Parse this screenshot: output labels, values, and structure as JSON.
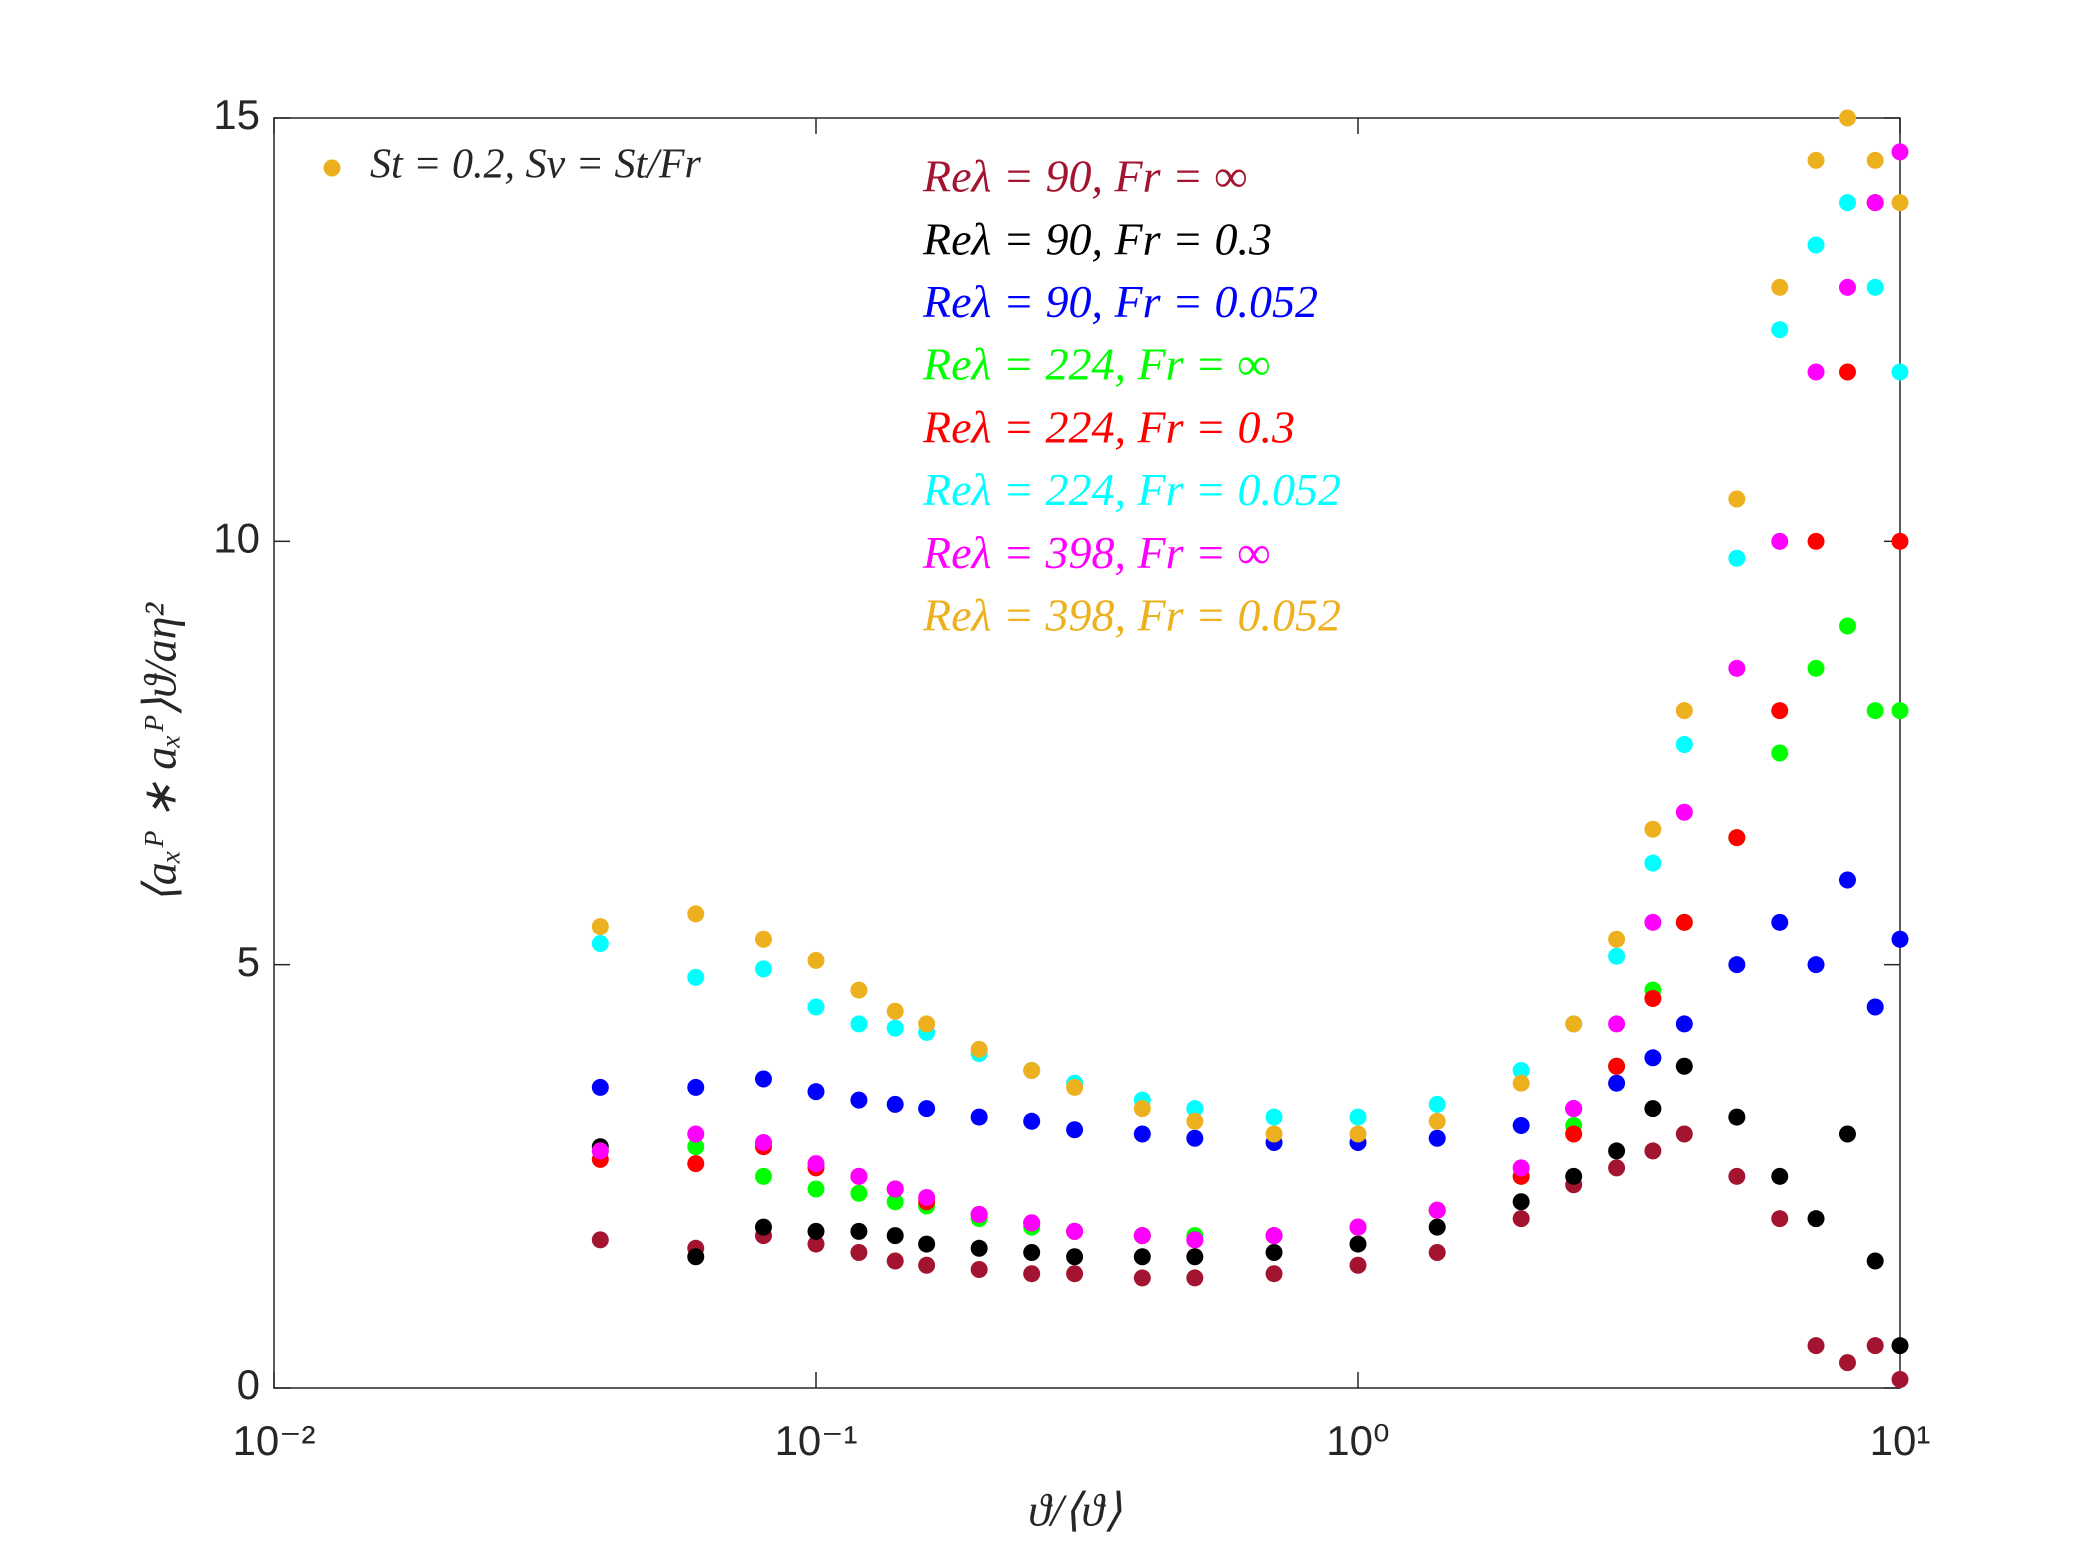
{
  "chart_data": {
    "type": "scatter",
    "xlabel": "ϑ/⟨ϑ⟩",
    "ylabel": "⟨aₓᴾ ∗ aₓᴾ⟩ϑ/aη²",
    "legend": {
      "label": "St = 0.2, Sv = St/Fr",
      "color": "#EDB120"
    },
    "log_x": true,
    "xlim": [
      0.01,
      10
    ],
    "ylim": [
      0,
      15
    ],
    "xticks": [
      {
        "value": 0.01,
        "label": "10⁻²"
      },
      {
        "value": 0.1,
        "label": "10⁻¹"
      },
      {
        "value": 1,
        "label": "10⁰"
      },
      {
        "value": 10,
        "label": "10¹"
      }
    ],
    "yticks": [
      0,
      5,
      10,
      15
    ],
    "x": [
      0.04,
      0.06,
      0.08,
      0.1,
      0.12,
      0.14,
      0.16,
      0.2,
      0.25,
      0.3,
      0.4,
      0.5,
      0.7,
      1,
      1.4,
      2,
      2.5,
      3,
      3.5,
      4,
      5,
      6,
      7,
      8,
      9,
      10
    ],
    "series": [
      {
        "name": "Reλ = 90, Fr = ∞",
        "color": "#A2142F",
        "values": [
          1.75,
          1.65,
          1.8,
          1.7,
          1.6,
          1.5,
          1.45,
          1.4,
          1.35,
          1.35,
          1.3,
          1.3,
          1.35,
          1.45,
          1.6,
          2.0,
          2.4,
          2.6,
          2.8,
          3.0,
          2.5,
          2.0,
          0.5,
          0.3,
          0.5,
          0.1
        ]
      },
      {
        "name": "Reλ = 90, Fr = 0.3",
        "color": "#000000",
        "values": [
          2.85,
          1.55,
          1.9,
          1.85,
          1.85,
          1.8,
          1.7,
          1.65,
          1.6,
          1.55,
          1.55,
          1.55,
          1.6,
          1.7,
          1.9,
          2.2,
          2.5,
          2.8,
          3.3,
          3.8,
          3.2,
          2.5,
          2.0,
          3.0,
          1.5,
          0.5
        ]
      },
      {
        "name": "Reλ = 90, Fr = 0.052",
        "color": "#0000FF",
        "values": [
          3.55,
          3.55,
          3.65,
          3.5,
          3.4,
          3.35,
          3.3,
          3.2,
          3.15,
          3.05,
          3.0,
          2.95,
          2.9,
          2.9,
          2.95,
          3.1,
          3.3,
          3.6,
          3.9,
          4.3,
          5.0,
          5.5,
          5.0,
          6.0,
          4.5,
          5.3
        ]
      },
      {
        "name": "Reλ = 224, Fr = ∞",
        "color": "#00FF00",
        "values": [
          2.8,
          2.85,
          2.5,
          2.35,
          2.3,
          2.2,
          2.15,
          2.0,
          1.9,
          1.85,
          1.8,
          1.8,
          1.8,
          1.9,
          2.1,
          2.5,
          3.1,
          3.8,
          4.7,
          5.5,
          6.5,
          7.5,
          8.5,
          9,
          8,
          8
        ]
      },
      {
        "name": "Reλ = 224, Fr = 0.3",
        "color": "#FF0000",
        "values": [
          2.7,
          2.65,
          2.85,
          2.6,
          2.5,
          2.35,
          2.2,
          2.05,
          1.95,
          1.85,
          1.8,
          1.75,
          1.8,
          1.9,
          2.1,
          2.5,
          3.0,
          3.8,
          4.6,
          5.5,
          6.5,
          8,
          10,
          12,
          14,
          10
        ]
      },
      {
        "name": "Reλ = 224, Fr = 0.052",
        "color": "#00FFFF",
        "values": [
          5.25,
          4.85,
          4.95,
          4.5,
          4.3,
          4.25,
          4.2,
          3.95,
          3.75,
          3.6,
          3.4,
          3.3,
          3.2,
          3.2,
          3.35,
          3.75,
          4.3,
          5.1,
          6.2,
          7.6,
          9.8,
          12.5,
          13.5,
          14,
          13,
          12
        ]
      },
      {
        "name": "Reλ = 398, Fr = ∞",
        "color": "#FF00FF",
        "values": [
          2.8,
          3.0,
          2.9,
          2.65,
          2.5,
          2.35,
          2.25,
          2.05,
          1.95,
          1.85,
          1.8,
          1.75,
          1.8,
          1.9,
          2.1,
          2.6,
          3.3,
          4.3,
          5.5,
          6.8,
          8.5,
          10,
          12,
          13,
          14,
          14.6
        ]
      },
      {
        "name": "Reλ = 398, Fr = 0.052",
        "color": "#EDB120",
        "values": [
          5.45,
          5.6,
          5.3,
          5.05,
          4.7,
          4.45,
          4.3,
          4.0,
          3.75,
          3.55,
          3.3,
          3.15,
          3.0,
          3.0,
          3.15,
          3.6,
          4.3,
          5.3,
          6.6,
          8.0,
          10.5,
          13,
          14.5,
          15,
          14.5,
          14
        ]
      }
    ]
  }
}
